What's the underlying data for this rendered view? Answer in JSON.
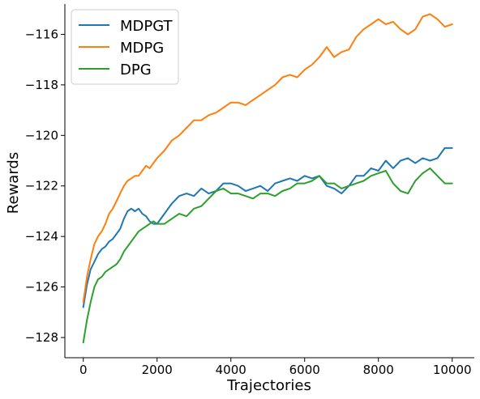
{
  "chart_data": {
    "type": "line",
    "title": "",
    "xlabel": "Trajectories",
    "ylabel": "Rewards",
    "xlim": [
      -500,
      10600
    ],
    "ylim": [
      -128.8,
      -114.8
    ],
    "xticks": [
      0,
      2000,
      4000,
      6000,
      8000,
      10000
    ],
    "yticks": [
      -128,
      -126,
      -124,
      -122,
      -120,
      -118,
      -116
    ],
    "ytick_labels": [
      "−128",
      "−126",
      "−124",
      "−122",
      "−120",
      "−118",
      "−116"
    ],
    "grid": false,
    "legend": "top-left",
    "series": [
      {
        "name": "MDPGT",
        "color": "#1f77b4",
        "x": [
          0,
          100,
          200,
          300,
          400,
          500,
          600,
          700,
          800,
          900,
          1000,
          1100,
          1200,
          1300,
          1400,
          1500,
          1600,
          1700,
          1800,
          1900,
          2000,
          2200,
          2400,
          2600,
          2800,
          3000,
          3200,
          3400,
          3600,
          3800,
          4000,
          4200,
          4400,
          4600,
          4800,
          5000,
          5200,
          5400,
          5600,
          5800,
          6000,
          6200,
          6400,
          6600,
          6800,
          7000,
          7200,
          7400,
          7600,
          7800,
          8000,
          8200,
          8400,
          8600,
          8800,
          9000,
          9200,
          9400,
          9600,
          9800,
          10000
        ],
        "y": [
          -126.8,
          -125.9,
          -125.3,
          -125.0,
          -124.7,
          -124.5,
          -124.4,
          -124.2,
          -124.1,
          -123.9,
          -123.7,
          -123.3,
          -123.0,
          -122.9,
          -123.0,
          -122.9,
          -123.1,
          -123.2,
          -123.4,
          -123.5,
          -123.5,
          -123.1,
          -122.7,
          -122.4,
          -122.3,
          -122.4,
          -122.1,
          -122.3,
          -122.2,
          -121.9,
          -121.9,
          -122.0,
          -122.2,
          -122.1,
          -122.0,
          -122.2,
          -121.9,
          -121.8,
          -121.7,
          -121.8,
          -121.6,
          -121.7,
          -121.6,
          -122.0,
          -122.1,
          -122.3,
          -122.0,
          -121.6,
          -121.6,
          -121.3,
          -121.4,
          -121.0,
          -121.3,
          -121.0,
          -120.9,
          -121.1,
          -120.9,
          -121.0,
          -120.9,
          -120.5,
          -120.5
        ]
      },
      {
        "name": "MDPG",
        "color": "#ff7f0e",
        "x": [
          0,
          100,
          200,
          300,
          400,
          500,
          600,
          700,
          800,
          900,
          1000,
          1100,
          1200,
          1300,
          1400,
          1500,
          1600,
          1700,
          1800,
          1900,
          2000,
          2200,
          2400,
          2600,
          2800,
          3000,
          3200,
          3400,
          3600,
          3800,
          4000,
          4200,
          4400,
          4600,
          4800,
          5000,
          5200,
          5400,
          5600,
          5800,
          6000,
          6200,
          6400,
          6600,
          6800,
          7000,
          7200,
          7400,
          7600,
          7800,
          8000,
          8200,
          8400,
          8600,
          8800,
          9000,
          9200,
          9400,
          9600,
          9800,
          10000
        ],
        "y": [
          -126.6,
          -125.6,
          -124.9,
          -124.3,
          -124.0,
          -123.8,
          -123.5,
          -123.1,
          -122.9,
          -122.6,
          -122.3,
          -122.0,
          -121.8,
          -121.7,
          -121.6,
          -121.6,
          -121.4,
          -121.2,
          -121.3,
          -121.1,
          -120.9,
          -120.6,
          -120.2,
          -120.0,
          -119.7,
          -119.4,
          -119.4,
          -119.2,
          -119.1,
          -118.9,
          -118.7,
          -118.7,
          -118.8,
          -118.6,
          -118.4,
          -118.2,
          -118.0,
          -117.7,
          -117.6,
          -117.7,
          -117.4,
          -117.2,
          -116.9,
          -116.5,
          -116.9,
          -116.7,
          -116.6,
          -116.1,
          -115.8,
          -115.6,
          -115.4,
          -115.6,
          -115.5,
          -115.8,
          -116.0,
          -115.8,
          -115.3,
          -115.2,
          -115.4,
          -115.7,
          -115.6
        ]
      },
      {
        "name": "DPG",
        "color": "#2ca02c",
        "x": [
          0,
          100,
          200,
          300,
          400,
          500,
          600,
          700,
          800,
          900,
          1000,
          1100,
          1200,
          1300,
          1400,
          1500,
          1600,
          1700,
          1800,
          1900,
          2000,
          2200,
          2400,
          2600,
          2800,
          3000,
          3200,
          3400,
          3600,
          3800,
          4000,
          4200,
          4400,
          4600,
          4800,
          5000,
          5200,
          5400,
          5600,
          5800,
          6000,
          6200,
          6400,
          6600,
          6800,
          7000,
          7200,
          7400,
          7600,
          7800,
          8000,
          8200,
          8400,
          8600,
          8800,
          9000,
          9200,
          9400,
          9600,
          9800,
          10000
        ],
        "y": [
          -128.2,
          -127.3,
          -126.6,
          -126.0,
          -125.7,
          -125.6,
          -125.4,
          -125.3,
          -125.2,
          -125.1,
          -124.9,
          -124.6,
          -124.4,
          -124.2,
          -124.0,
          -123.8,
          -123.7,
          -123.6,
          -123.5,
          -123.4,
          -123.5,
          -123.5,
          -123.3,
          -123.1,
          -123.2,
          -122.9,
          -122.8,
          -122.5,
          -122.2,
          -122.1,
          -122.3,
          -122.3,
          -122.4,
          -122.5,
          -122.3,
          -122.3,
          -122.4,
          -122.2,
          -122.1,
          -121.9,
          -121.9,
          -121.8,
          -121.6,
          -121.9,
          -121.9,
          -122.1,
          -122.0,
          -121.9,
          -121.8,
          -121.6,
          -121.5,
          -121.4,
          -121.9,
          -122.2,
          -122.3,
          -121.8,
          -121.5,
          -121.3,
          -121.6,
          -121.9,
          -121.9
        ]
      }
    ]
  }
}
